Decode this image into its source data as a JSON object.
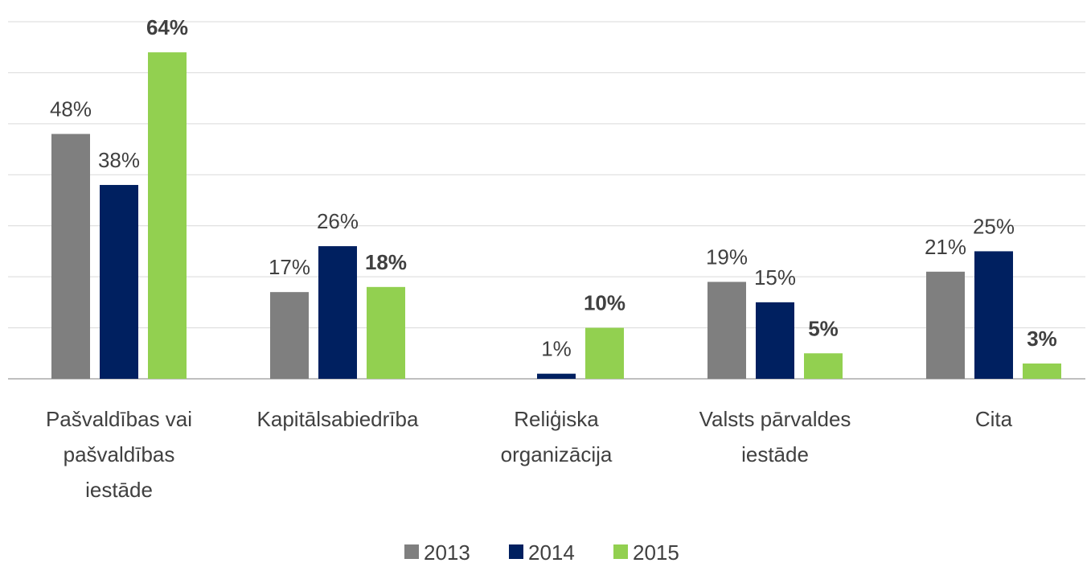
{
  "chart_data": {
    "type": "bar",
    "categories": [
      [
        "Pašvaldības vai",
        "pašvaldības",
        "iestāde"
      ],
      [
        "Kapitālsabiedrība"
      ],
      [
        "Reliģiska",
        "organizācija"
      ],
      [
        "Valsts pārvaldes",
        "iestāde"
      ],
      [
        "Cita"
      ]
    ],
    "series": [
      {
        "name": "2013",
        "color": "#7f7f7f",
        "values": [
          48,
          17,
          null,
          19,
          21
        ],
        "value_labels": [
          "48%",
          "17%",
          null,
          "19%",
          "21%"
        ],
        "label_bold": false
      },
      {
        "name": "2014",
        "color": "#002060",
        "values": [
          38,
          26,
          1,
          15,
          25
        ],
        "value_labels": [
          "38%",
          "26%",
          "1%",
          "15%",
          "25%"
        ],
        "label_bold": false
      },
      {
        "name": "2015",
        "color": "#92d050",
        "values": [
          64,
          18,
          10,
          5,
          3
        ],
        "value_labels": [
          "64%",
          "18%",
          "10%",
          "5%",
          "3%"
        ],
        "label_bold": true
      }
    ],
    "ylim": [
      0,
      70
    ],
    "yticks": [
      0,
      10,
      20,
      30,
      40,
      50,
      60,
      70
    ],
    "grid": true,
    "legend": "bottom"
  }
}
